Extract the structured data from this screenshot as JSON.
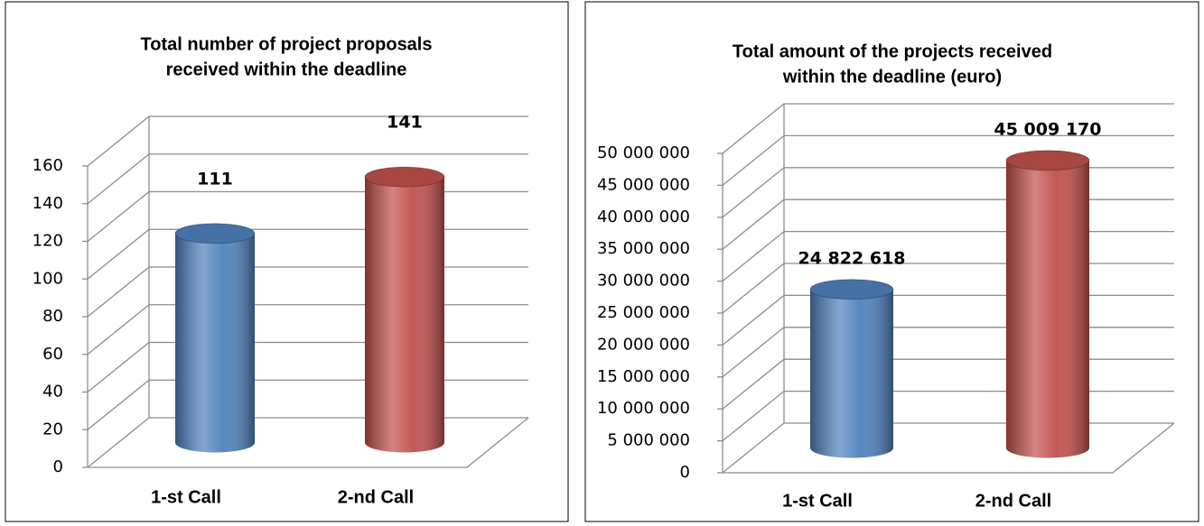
{
  "chart_data": [
    {
      "type": "bar",
      "title": [
        "Total number of project proposals",
        "received within the deadline"
      ],
      "categories": [
        "1-st Call",
        "2-nd Call"
      ],
      "values": [
        111,
        141
      ],
      "colors": [
        "#4f81bd",
        "#c0504d"
      ],
      "ylim": [
        0,
        160
      ],
      "yticks": [
        0,
        20,
        40,
        60,
        80,
        100,
        120,
        140,
        160
      ],
      "grid": true
    },
    {
      "type": "bar",
      "title": [
        "Total amount of the projects received",
        "within the deadline (euro)"
      ],
      "categories": [
        "1-st Call",
        "2-nd Call"
      ],
      "values": [
        24822618,
        45009170
      ],
      "value_labels": [
        "24 822 618",
        "45 009 170"
      ],
      "colors": [
        "#4f81bd",
        "#c0504d"
      ],
      "ylim": [
        0,
        50000000
      ],
      "yticks": [
        0,
        {
          "value": 5000000,
          "label": "5 000 000"
        },
        {
          "value": 10000000,
          "label": "10 000 000"
        },
        {
          "value": 15000000,
          "label": "15 000 000"
        },
        {
          "value": 20000000,
          "label": "20 000 000"
        },
        {
          "value": 25000000,
          "label": "25 000 000"
        },
        {
          "value": 30000000,
          "label": "30 000 000"
        },
        {
          "value": 35000000,
          "label": "35 000 000"
        },
        {
          "value": 40000000,
          "label": "40 000 000"
        },
        {
          "value": 45000000,
          "label": "45 000 000"
        },
        {
          "value": 50000000,
          "label": "50 000 000"
        }
      ],
      "grid": true
    }
  ]
}
